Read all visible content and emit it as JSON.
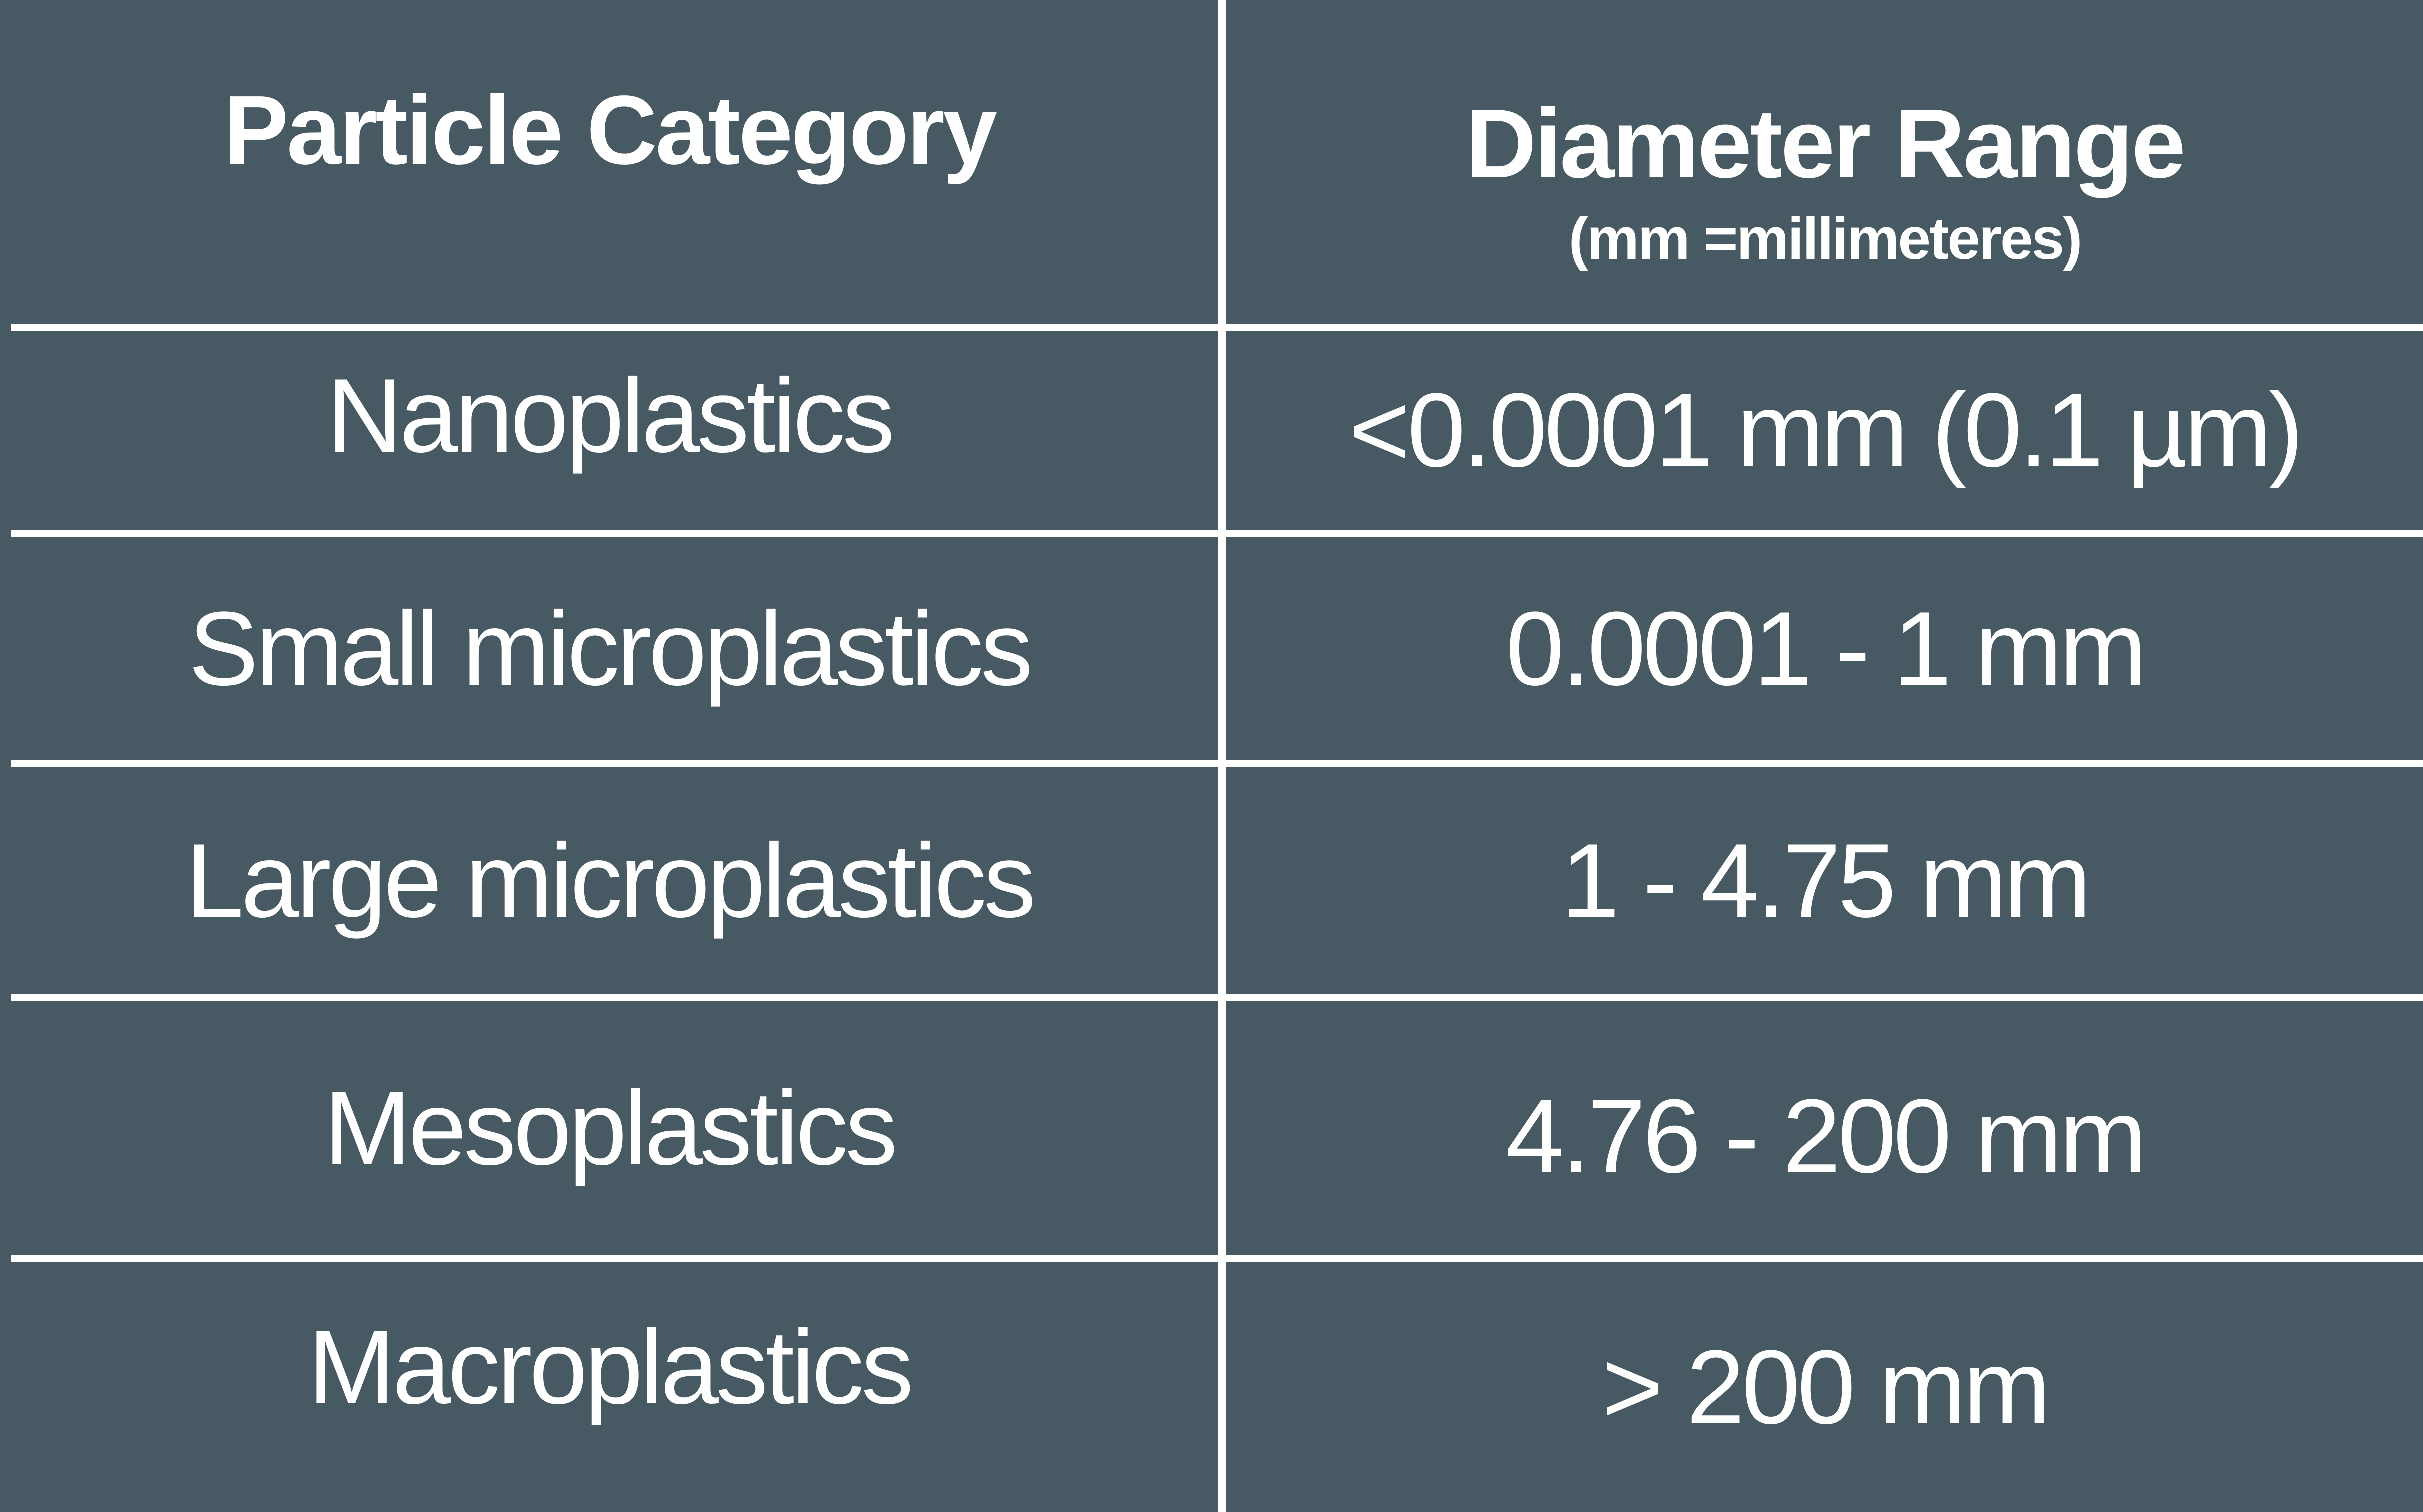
{
  "table": {
    "headers": {
      "category": "Particle Category",
      "diameter": "Diameter Range",
      "diameter_unit_note": "(mm =millimeteres)"
    },
    "rows": [
      {
        "category": "Nanoplastics",
        "range": "<0.0001 mm (0.1 µm)"
      },
      {
        "category": "Small microplastics",
        "range": "0.0001 - 1 mm"
      },
      {
        "category": "Large microplastics",
        "range": "1 - 4.75 mm"
      },
      {
        "category": "Mesoplastics",
        "range": "4.76 - 200 mm"
      },
      {
        "category": "Macroplastics",
        "range": "> 200 mm"
      }
    ]
  },
  "colors": {
    "background": "#475963",
    "grid": "#ffffff",
    "text": "#ffffff"
  }
}
